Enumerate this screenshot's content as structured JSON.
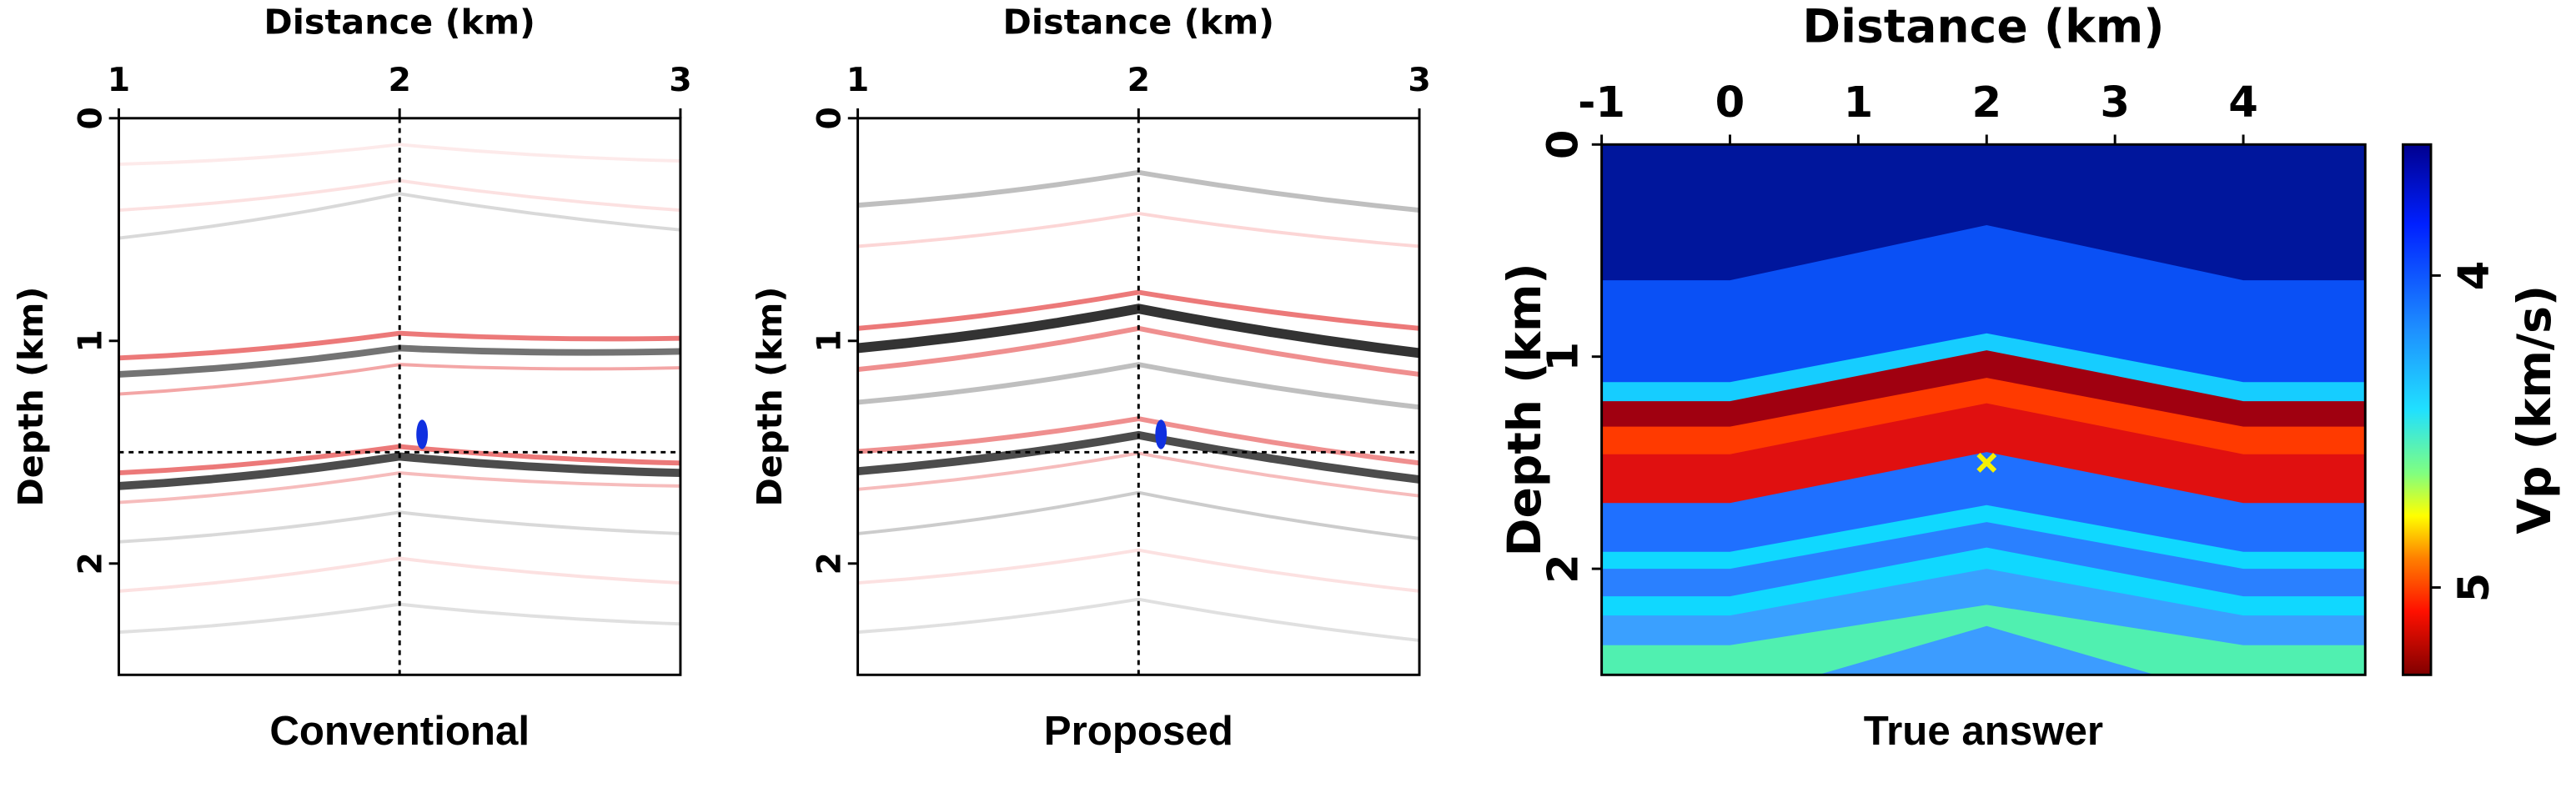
{
  "chart_data": [
    {
      "type": "seismic",
      "title": "Conventional",
      "xlabel": "Distance (km)",
      "ylabel": "Depth (km)",
      "xlim": [
        1,
        3
      ],
      "ylim": [
        0,
        2.5
      ],
      "xticks": [
        1,
        2,
        3
      ],
      "yticks": [
        0,
        1,
        2
      ],
      "crosshair": {
        "x": 2,
        "y": 1.5
      },
      "marker": {
        "x": 2.08,
        "y": 1.42,
        "color": "#1030e0"
      }
    },
    {
      "type": "seismic",
      "title": "Proposed",
      "xlabel": "Distance (km)",
      "ylabel": "Depth (km)",
      "xlim": [
        1,
        3
      ],
      "ylim": [
        0,
        2.5
      ],
      "xticks": [
        1,
        2,
        3
      ],
      "yticks": [
        0,
        1,
        2
      ],
      "crosshair": {
        "x": 2,
        "y": 1.5
      },
      "marker": {
        "x": 2.08,
        "y": 1.42,
        "color": "#1030e0"
      }
    },
    {
      "type": "layered-model",
      "title": "True answer",
      "xlabel": "Distance (km)",
      "ylabel": "Depth (km)",
      "xlim": [
        -1,
        4.95
      ],
      "ylim": [
        0,
        2.5
      ],
      "xticks": [
        -1,
        0,
        1,
        2,
        3,
        4
      ],
      "yticks": [
        0,
        1,
        2
      ],
      "apex_x": 2,
      "flank_x": [
        0,
        4
      ],
      "layers": [
        {
          "top_flank": 0,
          "top_apex": 0,
          "color": "#00169c"
        },
        {
          "top_flank": 0.64,
          "top_apex": 0.38,
          "color": "#0a50f5"
        },
        {
          "top_flank": 1.12,
          "top_apex": 0.89,
          "color": "#16cdff"
        },
        {
          "top_flank": 1.21,
          "top_apex": 0.97,
          "color": "#a00010"
        },
        {
          "top_flank": 1.33,
          "top_apex": 1.1,
          "color": "#ff3a00"
        },
        {
          "top_flank": 1.46,
          "top_apex": 1.22,
          "color": "#e01010"
        },
        {
          "top_flank": 1.69,
          "top_apex": 1.45,
          "color": "#1f70ff"
        },
        {
          "top_flank": 1.92,
          "top_apex": 1.7,
          "color": "#10d8ff"
        },
        {
          "top_flank": 2.0,
          "top_apex": 1.78,
          "color": "#2a80ff"
        },
        {
          "top_flank": 2.13,
          "top_apex": 1.9,
          "color": "#10d8ff"
        },
        {
          "top_flank": 2.22,
          "top_apex": 2.0,
          "color": "#3aa0ff"
        },
        {
          "top_flank": 2.36,
          "top_apex": 2.17,
          "color": "#50f0b0"
        },
        {
          "top_flank": 2.62,
          "top_apex": 2.27,
          "color": "#3c9cff"
        }
      ],
      "marker": {
        "x": 2,
        "y": 1.5,
        "color": "#f5f000"
      },
      "colorbar": {
        "label": "Vp (km/s)",
        "lim": [
          3.58,
          5.28
        ],
        "ticks": [
          4,
          5
        ]
      }
    }
  ]
}
